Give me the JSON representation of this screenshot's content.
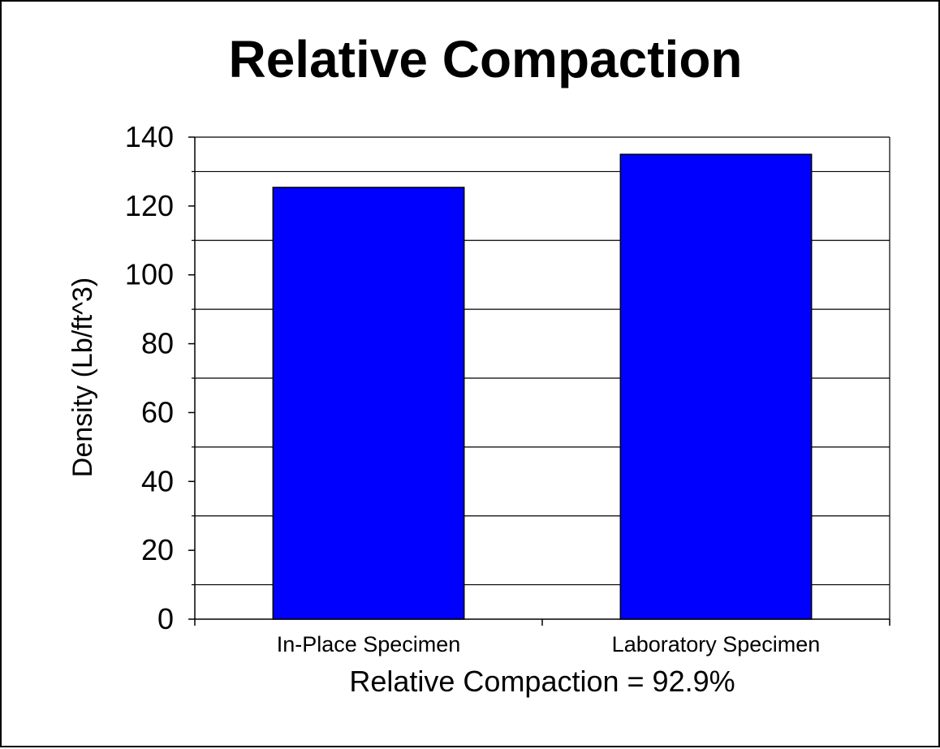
{
  "chart_data": {
    "type": "bar",
    "title": "Relative Compaction",
    "ylabel": "Density (Lb/ft^3)",
    "xlabel": "Relative Compaction = 92.9%",
    "categories": [
      "In-Place Specimen",
      "Laboratory Specimen"
    ],
    "values": [
      125.4,
      135.0
    ],
    "ylim": [
      0,
      140
    ],
    "yticks": [
      0,
      20,
      40,
      60,
      80,
      100,
      120,
      140
    ],
    "grid": true,
    "bar_color": "#0000FF",
    "bar_outline_color": "#000000"
  }
}
